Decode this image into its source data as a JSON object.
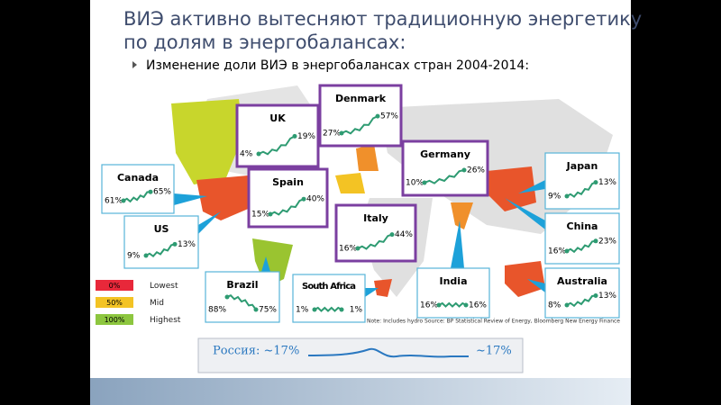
{
  "title": {
    "lines": [
      "ВИЭ активно вытесняют традиционную энергетику",
      "по долям в энергобалансах:"
    ]
  },
  "bullet": "Изменение доли ВИЭ в энергобалансах стран 2004-2014:",
  "countries": [
    {
      "name": "Canada",
      "start": "61%",
      "end": "65%"
    },
    {
      "name": "US",
      "start": "9%",
      "end": "13%"
    },
    {
      "name": "UK",
      "start": "4%",
      "end": "19%"
    },
    {
      "name": "Denmark",
      "start": "27%",
      "end": "57%"
    },
    {
      "name": "Germany",
      "start": "10%",
      "end": "26%"
    },
    {
      "name": "Spain",
      "start": "15%",
      "end": "40%"
    },
    {
      "name": "Italy",
      "start": "16%",
      "end": "44%"
    },
    {
      "name": "Japan",
      "start": "9%",
      "end": "13%"
    },
    {
      "name": "China",
      "start": "16%",
      "end": "23%"
    },
    {
      "name": "Australia",
      "start": "8%",
      "end": "13%"
    },
    {
      "name": "India",
      "start": "16%",
      "end": "16%"
    },
    {
      "name": "South Africa",
      "start": "1%",
      "end": "1%"
    },
    {
      "name": "Brazil",
      "start": "88%",
      "end": "75%"
    }
  ],
  "legend": [
    {
      "swatch": "0%",
      "label": "Lowest"
    },
    {
      "swatch": "50%",
      "label": "Mid"
    },
    {
      "swatch": "100%",
      "label": "Highest"
    }
  ],
  "note": "Note: Includes hydro  Source: BP Statistical Review of Energy, Bloomberg New Energy Finance",
  "russia": {
    "label": "Россия: ~17%",
    "end": "~17%"
  }
}
